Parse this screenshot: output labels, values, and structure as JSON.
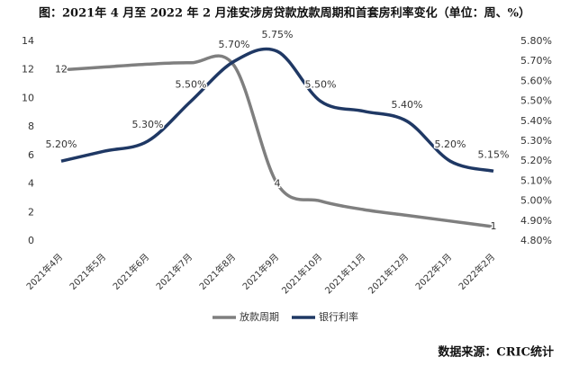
{
  "chart_data": {
    "type": "line",
    "title": "图：2021年 4 月至 2022 年 2 月淮安涉房贷款放款周期和首套房利率变化（单位：周、%）",
    "source": "数据来源：CRIC统计",
    "categories": [
      "2021年4月",
      "2021年5月",
      "2021年6月",
      "2021年7月",
      "2021年8月",
      "2021年9月",
      "2021年10月",
      "2021年11月",
      "2021年12月",
      "2022年1月",
      "2022年2月"
    ],
    "series": [
      {
        "name": "放款周期",
        "color": "#7f7f7f",
        "values": [
          12,
          12.2,
          12.4,
          12.5,
          12.3,
          4,
          2.8,
          2.2,
          1.8,
          1.4,
          1
        ],
        "value_labels": [
          "12",
          null,
          null,
          null,
          null,
          "4",
          null,
          null,
          null,
          null,
          "1"
        ]
      },
      {
        "name": "银行利率",
        "color": "#1f3864",
        "axis": "y2",
        "values": [
          5.2,
          5.25,
          5.3,
          5.5,
          5.7,
          5.75,
          5.5,
          5.45,
          5.4,
          5.2,
          5.15
        ],
        "value_labels": [
          "5.20%",
          null,
          "5.30%",
          "5.50%",
          "5.70%",
          "5.75%",
          "5.50%",
          null,
          "5.40%",
          "5.20%",
          "5.15%"
        ]
      }
    ],
    "ylim": [
      0,
      14
    ],
    "yticks": [
      0,
      2,
      4,
      6,
      8,
      10,
      12,
      14
    ],
    "y2lim": [
      4.8,
      5.8
    ],
    "y2ticks": [
      {
        "value": 4.8,
        "label": "4.80%"
      },
      {
        "value": 4.9,
        "label": "4.90%"
      },
      {
        "value": 5.0,
        "label": "5.00%"
      },
      {
        "value": 5.1,
        "label": "5.10%"
      },
      {
        "value": 5.2,
        "label": "5.20%"
      },
      {
        "value": 5.3,
        "label": "5.30%"
      },
      {
        "value": 5.4,
        "label": "5.40%"
      },
      {
        "value": 5.5,
        "label": "5.50%"
      },
      {
        "value": 5.6,
        "label": "5.60%"
      },
      {
        "value": 5.7,
        "label": "5.70%"
      },
      {
        "value": 5.8,
        "label": "5.80%"
      }
    ],
    "grid": false,
    "legend": "bottom"
  }
}
